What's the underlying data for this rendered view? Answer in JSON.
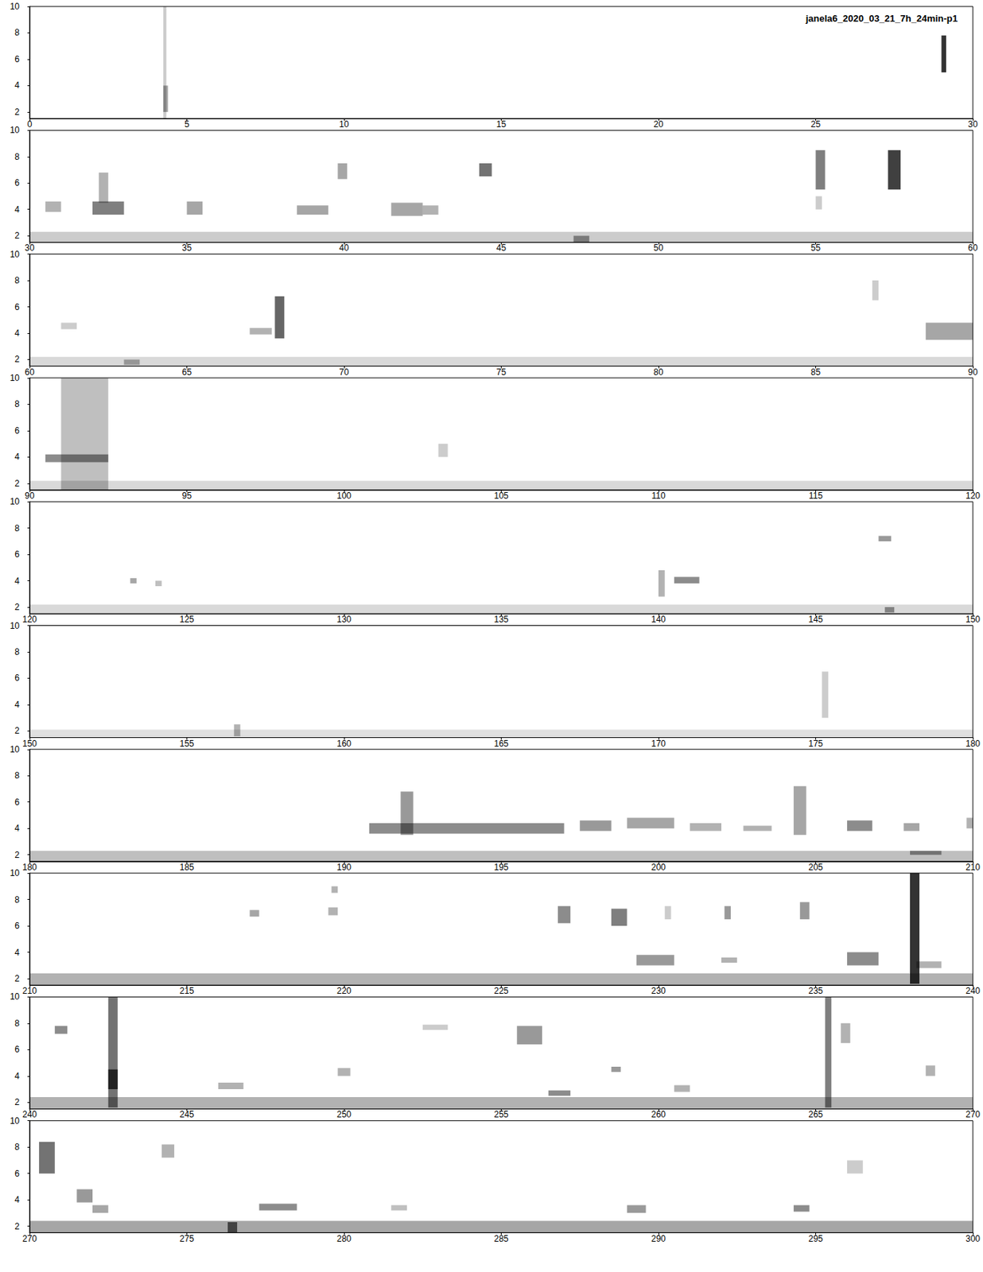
{
  "chart_data": {
    "type": "spectrogram",
    "title": "janela6_2020_03_21_7h_24min-p1",
    "color": "#000000",
    "ylim": [
      1.5,
      10
    ],
    "yticks": [
      2,
      4,
      6,
      8,
      10
    ],
    "panels": [
      {
        "xlim": [
          0,
          30
        ],
        "xticks": [
          0,
          5,
          10,
          15,
          20,
          25,
          30
        ]
      },
      {
        "xlim": [
          30,
          60
        ],
        "xticks": [
          30,
          35,
          40,
          45,
          50,
          55,
          60
        ]
      },
      {
        "xlim": [
          60,
          90
        ],
        "xticks": [
          60,
          65,
          70,
          75,
          80,
          85,
          90
        ]
      },
      {
        "xlim": [
          90,
          120
        ],
        "xticks": [
          90,
          95,
          100,
          105,
          110,
          115,
          120
        ]
      },
      {
        "xlim": [
          120,
          150
        ],
        "xticks": [
          120,
          125,
          130,
          135,
          140,
          145,
          150
        ]
      },
      {
        "xlim": [
          150,
          180
        ],
        "xticks": [
          150,
          155,
          160,
          165,
          170,
          175,
          180
        ]
      },
      {
        "xlim": [
          180,
          210
        ],
        "xticks": [
          180,
          185,
          190,
          195,
          200,
          205,
          210
        ]
      },
      {
        "xlim": [
          210,
          240
        ],
        "xticks": [
          210,
          215,
          220,
          225,
          230,
          235,
          240
        ]
      },
      {
        "xlim": [
          240,
          270
        ],
        "xticks": [
          240,
          245,
          250,
          255,
          260,
          265,
          270
        ]
      },
      {
        "xlim": [
          270,
          300
        ],
        "xticks": [
          270,
          275,
          280,
          285,
          290,
          295,
          300
        ]
      }
    ],
    "events": [
      [
        4.25,
        4.35,
        1.5,
        10,
        0.2
      ],
      [
        4.25,
        4.4,
        2,
        4,
        0.35
      ],
      [
        29.0,
        29.15,
        5,
        7.8,
        0.8
      ],
      [
        30,
        60,
        1.5,
        2.3,
        0.2
      ],
      [
        30.5,
        31,
        3.8,
        4.6,
        0.3
      ],
      [
        32,
        33,
        3.6,
        4.6,
        0.5
      ],
      [
        32.2,
        32.5,
        4.5,
        6.8,
        0.3
      ],
      [
        35,
        35.5,
        3.6,
        4.6,
        0.35
      ],
      [
        38.5,
        39.5,
        3.6,
        4.3,
        0.35
      ],
      [
        39.8,
        40.1,
        6.3,
        7.5,
        0.35
      ],
      [
        41.5,
        42.5,
        3.5,
        4.5,
        0.35
      ],
      [
        42.5,
        43,
        3.6,
        4.3,
        0.3
      ],
      [
        44.3,
        44.7,
        6.5,
        7.5,
        0.55
      ],
      [
        47.3,
        47.8,
        1.5,
        2,
        0.4
      ],
      [
        55,
        55.3,
        5.5,
        8.5,
        0.5
      ],
      [
        57.3,
        57.7,
        5.5,
        8.5,
        0.75
      ],
      [
        55,
        55.2,
        4,
        5,
        0.2
      ],
      [
        60,
        90,
        1.5,
        2.2,
        0.15
      ],
      [
        67.8,
        68.1,
        3.6,
        6.8,
        0.6
      ],
      [
        67,
        67.7,
        3.9,
        4.4,
        0.3
      ],
      [
        61,
        61.5,
        4.3,
        4.8,
        0.2
      ],
      [
        63,
        63.5,
        1.6,
        2,
        0.3
      ],
      [
        88.5,
        90,
        3.5,
        4.8,
        0.35
      ],
      [
        86.8,
        87,
        6.5,
        8,
        0.2
      ],
      [
        90,
        120,
        1.5,
        2.2,
        0.15
      ],
      [
        91,
        92.5,
        1.5,
        10,
        0.25
      ],
      [
        90.5,
        92.5,
        3.6,
        4.2,
        0.45
      ],
      [
        103,
        103.3,
        4,
        5,
        0.2
      ],
      [
        120,
        150,
        1.5,
        2.2,
        0.15
      ],
      [
        123.2,
        123.4,
        3.8,
        4.2,
        0.35
      ],
      [
        124,
        124.2,
        3.6,
        4,
        0.25
      ],
      [
        140,
        140.2,
        2.8,
        4.8,
        0.3
      ],
      [
        140.5,
        141.3,
        3.8,
        4.3,
        0.45
      ],
      [
        147,
        147.4,
        7,
        7.4,
        0.4
      ],
      [
        147.2,
        147.5,
        1.6,
        2,
        0.4
      ],
      [
        150,
        180,
        1.5,
        2.1,
        0.12
      ],
      [
        156.5,
        156.7,
        1.6,
        2.5,
        0.3
      ],
      [
        175.2,
        175.4,
        3,
        6.5,
        0.2
      ],
      [
        180,
        210,
        1.5,
        2.3,
        0.25
      ],
      [
        191.8,
        192.2,
        3.5,
        6.8,
        0.4
      ],
      [
        190.8,
        197,
        3.6,
        4.4,
        0.45
      ],
      [
        197.5,
        198.5,
        3.8,
        4.6,
        0.4
      ],
      [
        199,
        200.5,
        4,
        4.8,
        0.35
      ],
      [
        201,
        202,
        3.8,
        4.4,
        0.3
      ],
      [
        202.7,
        203.6,
        3.8,
        4.2,
        0.3
      ],
      [
        204.3,
        204.7,
        3.5,
        7.2,
        0.35
      ],
      [
        206,
        206.8,
        3.8,
        4.6,
        0.45
      ],
      [
        207.8,
        208.3,
        3.8,
        4.4,
        0.35
      ],
      [
        208,
        209,
        2,
        2.3,
        0.4
      ],
      [
        209.8,
        210,
        4,
        4.8,
        0.3
      ],
      [
        210,
        240,
        1.5,
        2.4,
        0.3
      ],
      [
        217,
        217.3,
        6.7,
        7.2,
        0.35
      ],
      [
        219.5,
        219.8,
        6.8,
        7.4,
        0.3
      ],
      [
        219.6,
        219.8,
        8.5,
        9,
        0.3
      ],
      [
        226.8,
        227.2,
        6.2,
        7.5,
        0.45
      ],
      [
        228.5,
        229,
        6,
        7.3,
        0.5
      ],
      [
        230.2,
        230.4,
        6.5,
        7.5,
        0.2
      ],
      [
        232.1,
        232.3,
        6.5,
        7.5,
        0.4
      ],
      [
        234.5,
        234.8,
        6.5,
        7.8,
        0.4
      ],
      [
        229.3,
        230.5,
        3,
        3.8,
        0.4
      ],
      [
        232,
        232.5,
        3.2,
        3.6,
        0.3
      ],
      [
        236,
        237,
        3,
        4,
        0.45
      ],
      [
        238,
        238.3,
        1.6,
        10,
        0.8
      ],
      [
        238.2,
        239,
        2.8,
        3.3,
        0.3
      ],
      [
        240,
        270,
        1.5,
        2.4,
        0.3
      ],
      [
        240.8,
        241.2,
        7.2,
        7.8,
        0.45
      ],
      [
        242.5,
        242.8,
        1.6,
        10,
        0.55
      ],
      [
        242.5,
        242.8,
        3,
        4.5,
        0.7
      ],
      [
        246,
        246.8,
        3,
        3.5,
        0.3
      ],
      [
        249.8,
        250.2,
        4,
        4.6,
        0.3
      ],
      [
        252.5,
        253.3,
        7.5,
        7.9,
        0.2
      ],
      [
        256.5,
        257.2,
        2.5,
        2.9,
        0.45
      ],
      [
        258.5,
        258.8,
        4.3,
        4.7,
        0.4
      ],
      [
        260.5,
        261,
        2.8,
        3.3,
        0.3
      ],
      [
        265.3,
        265.5,
        1.6,
        10,
        0.5
      ],
      [
        265.8,
        266.1,
        6.5,
        8,
        0.3
      ],
      [
        268.5,
        268.8,
        4,
        4.8,
        0.3
      ],
      [
        255.5,
        256.3,
        6.4,
        7.8,
        0.4
      ],
      [
        270,
        300,
        1.5,
        2.4,
        0.35
      ],
      [
        270.3,
        270.8,
        6,
        8.4,
        0.55
      ],
      [
        271.5,
        272,
        3.8,
        4.8,
        0.4
      ],
      [
        272,
        272.5,
        3,
        3.6,
        0.35
      ],
      [
        274.2,
        274.6,
        7.2,
        8.2,
        0.3
      ],
      [
        276.3,
        276.6,
        1.5,
        2.3,
        0.6
      ],
      [
        277.3,
        278.5,
        3.2,
        3.7,
        0.45
      ],
      [
        281.5,
        282,
        3.2,
        3.6,
        0.25
      ],
      [
        289,
        289.6,
        3,
        3.6,
        0.4
      ],
      [
        294.3,
        294.8,
        3.1,
        3.6,
        0.45
      ],
      [
        296,
        296.5,
        6,
        7,
        0.2
      ]
    ]
  }
}
